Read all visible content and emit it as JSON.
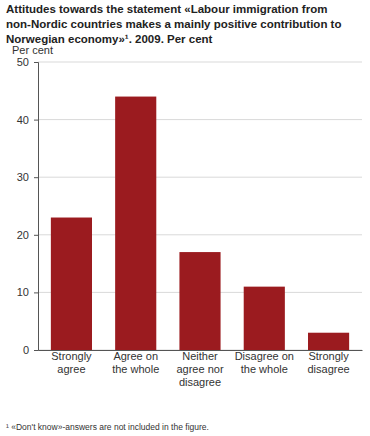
{
  "chart_data": {
    "type": "bar",
    "title": "Attitudes towards the statement «Labour immigration from non-Nordic countries makes a mainly positive contribution to Norwegian economy»¹. 2009. Per cent",
    "y_label": "Per cent",
    "categories": [
      "Strongly agree",
      "Agree on the whole",
      "Neither agree nor disagree",
      "Disagree on the whole",
      "Strongly disagree"
    ],
    "values": [
      23,
      44,
      17,
      11,
      3
    ],
    "color": "#9b1b1f",
    "ylim": [
      0,
      50
    ],
    "yticks": [
      0,
      10,
      20,
      30,
      40,
      50
    ],
    "grid": true,
    "annotations": [
      "¹ «Don't know»-answers are not included in the figure."
    ]
  }
}
